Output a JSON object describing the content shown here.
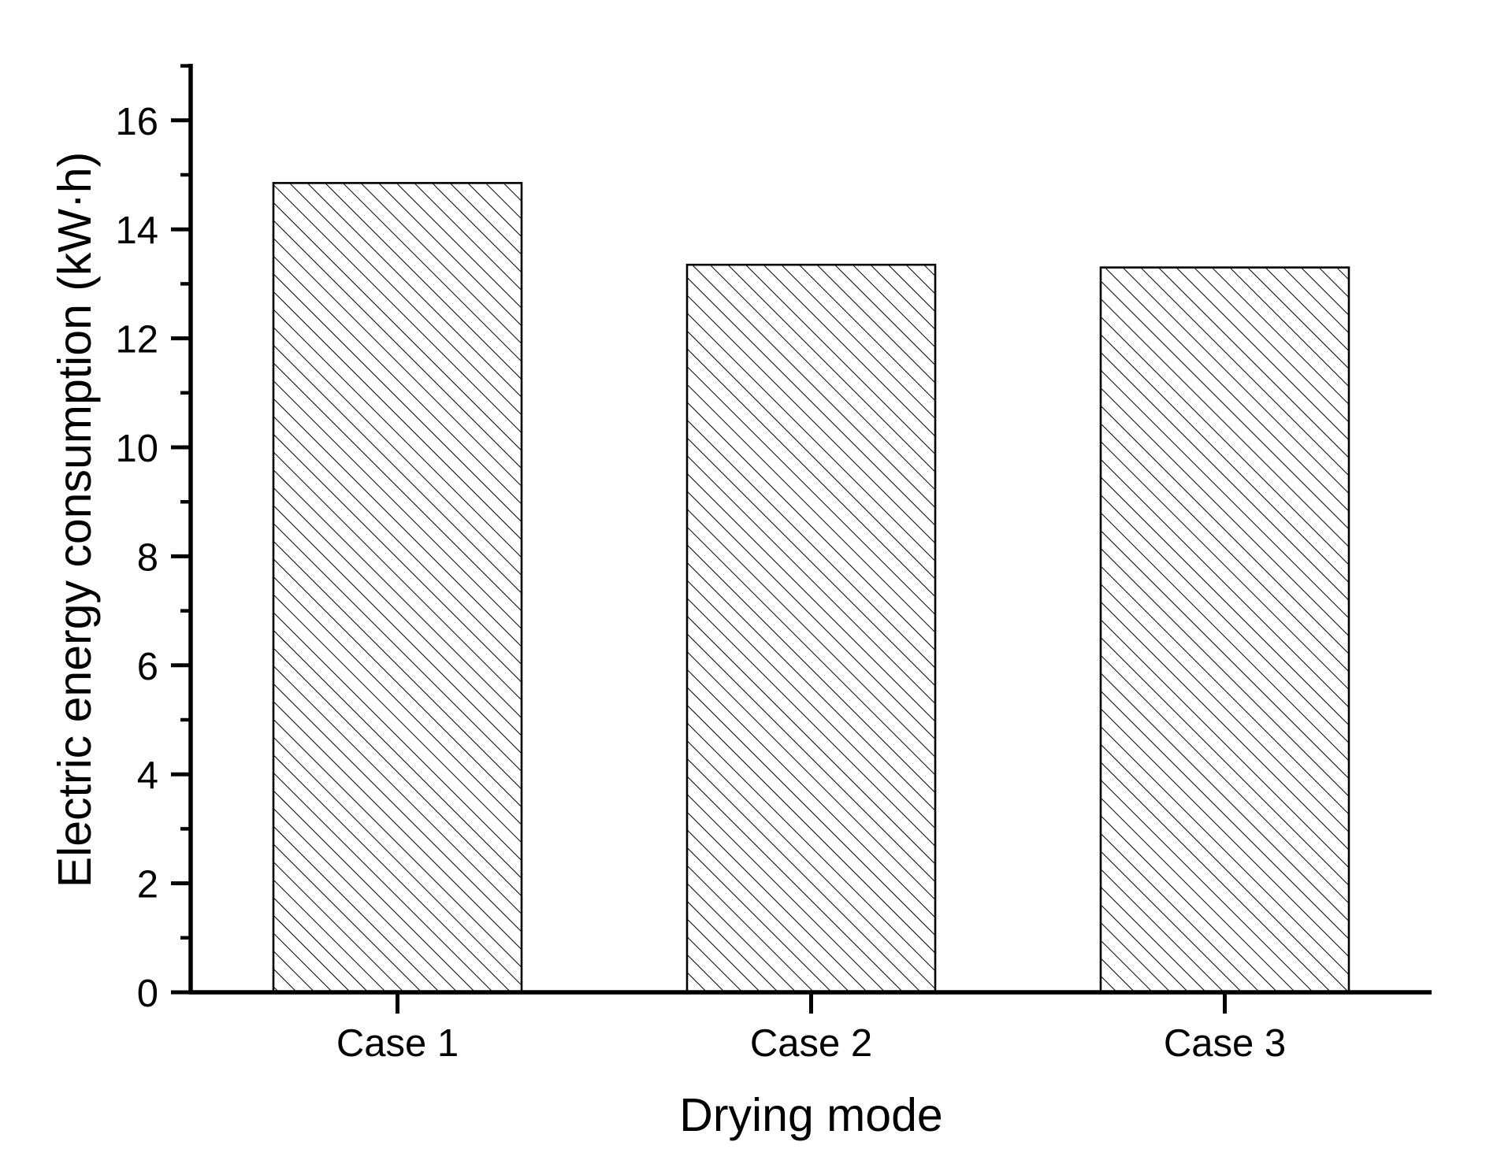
{
  "chart_data": {
    "type": "bar",
    "title": "",
    "categories": [
      "Case 1",
      "Case 2",
      "Case 3"
    ],
    "values": [
      14.85,
      13.35,
      13.3
    ],
    "xlabel": "Drying mode",
    "ylabel": "Electric energy consumption (kW·h)",
    "ylim": [
      0,
      17
    ],
    "y_major_ticks": [
      0,
      2,
      4,
      6,
      8,
      10,
      12,
      14,
      16
    ],
    "y_minor_ticks": [
      1,
      3,
      5,
      7,
      9,
      11,
      13,
      15,
      17
    ],
    "grid": false,
    "legend": null,
    "bar_style": {
      "hatch": "diagonal-backslash",
      "fill": "#ffffff",
      "edge": "#000000"
    },
    "ink_color": "#000000",
    "background_color": "#ffffff"
  }
}
